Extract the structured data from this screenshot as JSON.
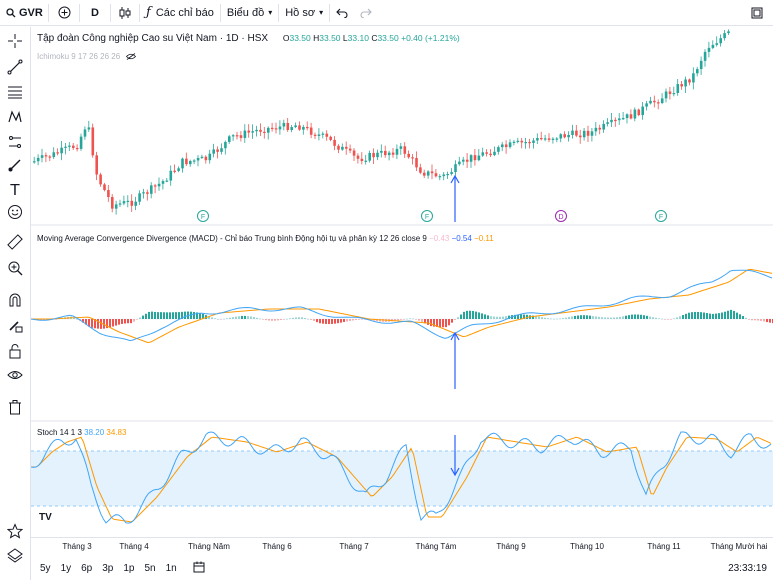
{
  "toolbar": {
    "symbol": "GVR",
    "interval": "D",
    "indicators_label": "Các chỉ báo",
    "chart_type_label": "Biểu đồ",
    "profile_label": "Hồ sơ"
  },
  "legend": {
    "title": "Tập đoàn Công nghiệp Cao su Việt Nam · 1D · HSX",
    "open_label": "O",
    "open": "33.50",
    "high_label": "H",
    "high": "33.50",
    "low_label": "L",
    "low": "33.10",
    "close_label": "C",
    "close": "33.50",
    "change": "+0.40 (+1.21%)",
    "ichimoku": "Ichimoku 9 17 26 26 26"
  },
  "macd": {
    "label": "Moving Average Convergence Divergence (MACD) - Chỉ báo Trung bình Động hội tụ và phân kỳ 12 26 close 9",
    "histogram": "−0.43",
    "macd_value": "−0.54",
    "signal_value": "−0.11"
  },
  "stoch": {
    "label": "Stoch 14 1 3",
    "k": "38.20",
    "d": "34.83"
  },
  "event_markers": [
    "F",
    "F",
    "D",
    "F"
  ],
  "time_axis": [
    "Tháng 3",
    "Tháng 4",
    "Tháng Năm",
    "Tháng 6",
    "Tháng 7",
    "Tháng Tám",
    "Tháng 9",
    "Tháng 10",
    "Tháng 11",
    "Tháng Mười hai"
  ],
  "ranges": [
    "5y",
    "1y",
    "6p",
    "3p",
    "1p",
    "5n",
    "1n"
  ],
  "clock": "23:33:19",
  "logo": "TV",
  "colors": {
    "up": "#26a69a",
    "down": "#ef5350",
    "macd": "#42a5f5",
    "signal": "#ff9800",
    "stoch_band": "#e3f2fd",
    "arrow": "#2962ff"
  }
}
